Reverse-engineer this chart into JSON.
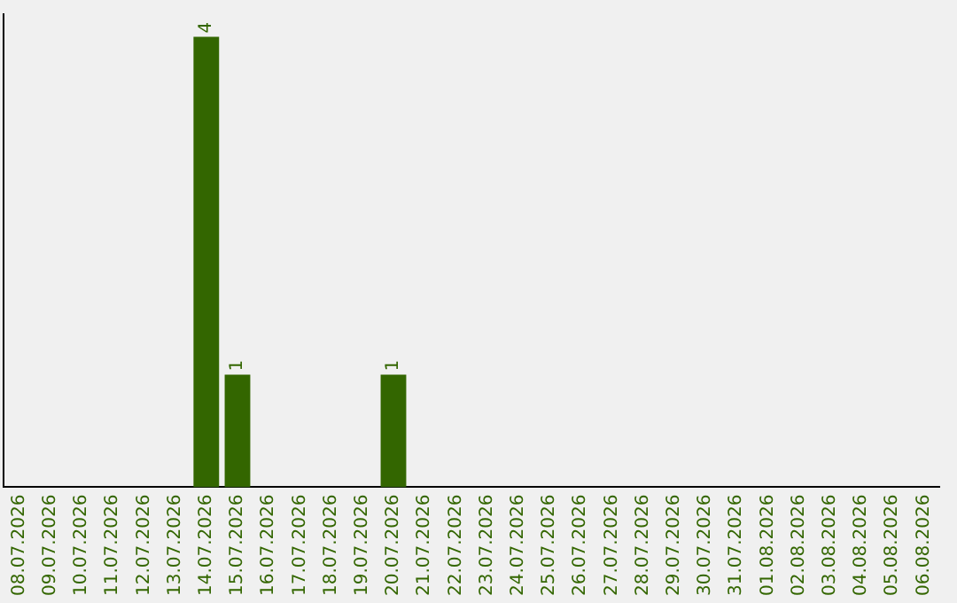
{
  "chart_data": {
    "type": "bar",
    "categories": [
      "08.07.2026",
      "09.07.2026",
      "10.07.2026",
      "11.07.2026",
      "12.07.2026",
      "13.07.2026",
      "14.07.2026",
      "15.07.2026",
      "16.07.2026",
      "17.07.2026",
      "18.07.2026",
      "19.07.2026",
      "20.07.2026",
      "21.07.2026",
      "22.07.2026",
      "23.07.2026",
      "24.07.2026",
      "25.07.2026",
      "26.07.2026",
      "27.07.2026",
      "28.07.2026",
      "29.07.2026",
      "30.07.2026",
      "31.07.2026",
      "01.08.2026",
      "02.08.2026",
      "03.08.2026",
      "04.08.2026",
      "05.08.2026",
      "06.08.2026"
    ],
    "values": [
      0,
      0,
      0,
      0,
      0,
      0,
      4,
      1,
      0,
      0,
      0,
      0,
      1,
      0,
      0,
      0,
      0,
      0,
      0,
      0,
      0,
      0,
      0,
      0,
      0,
      0,
      0,
      0,
      0,
      0
    ],
    "value_labels": [
      null,
      null,
      null,
      null,
      null,
      null,
      "4",
      "1",
      null,
      null,
      null,
      null,
      "1",
      null,
      null,
      null,
      null,
      null,
      null,
      null,
      null,
      null,
      null,
      null,
      null,
      null,
      null,
      null,
      null,
      null
    ],
    "color": "#336600",
    "ylim": [
      0,
      4.2
    ],
    "tick_labels": "x",
    "grid": false,
    "legend": false
  }
}
